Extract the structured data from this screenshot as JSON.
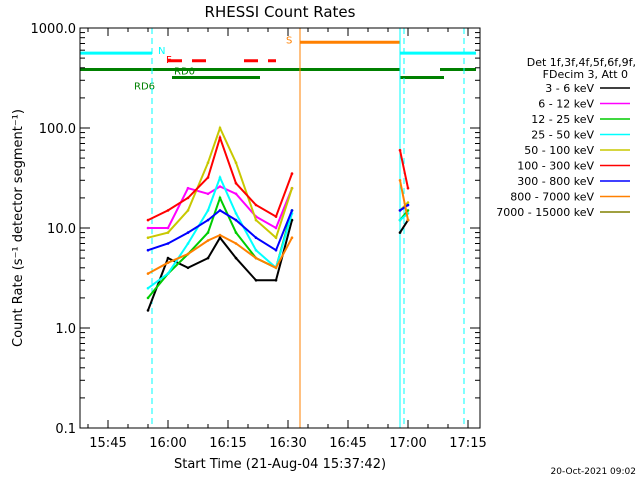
{
  "chart_data": {
    "type": "line",
    "title": "RHESSI Count Rates",
    "xlabel": "Start Time (21-Aug-04 15:37:42)",
    "ylabel": "Count Rate (s⁻¹ detector segment⁻¹)",
    "ylog": true,
    "ylim": [
      0.1,
      1000
    ],
    "xlim_minutes": [
      15.63,
      17.27
    ],
    "x_ticks": [
      "15:45",
      "16:00",
      "16:15",
      "16:30",
      "16:45",
      "17:00",
      "17:15"
    ],
    "y_ticks": [
      "0.1",
      "1.0",
      "10.0",
      "100.0",
      "1000.0"
    ],
    "legend": {
      "header": [
        "Det 1f,3f,4f,5f,6f,9f,",
        "FDecim 3, Att 0"
      ],
      "placement": "right"
    },
    "footer": "20-Oct-2021 09:02",
    "series": [
      {
        "name": "3 - 6 keV",
        "color": "#000000",
        "x": [
          "15:55",
          "16:00",
          "16:05",
          "16:10",
          "16:13",
          "16:17",
          "16:22",
          "16:27",
          "16:31",
          "16:58",
          "17:00"
        ],
        "values": [
          1.5,
          5.0,
          4.0,
          5.0,
          8.0,
          5.0,
          3.0,
          3.0,
          12.0,
          9.0,
          12.0
        ]
      },
      {
        "name": "6 - 12 keV",
        "color": "#ff00ff",
        "x": [
          "15:55",
          "16:00",
          "16:05",
          "16:10",
          "16:13",
          "16:17",
          "16:22",
          "16:27",
          "16:31",
          "16:58",
          "17:00"
        ],
        "values": [
          10,
          10,
          25,
          22,
          26,
          22,
          13,
          10,
          25,
          15,
          17
        ]
      },
      {
        "name": "12 - 25 keV",
        "color": "#00cc00",
        "x": [
          "15:55",
          "16:00",
          "16:05",
          "16:10",
          "16:13",
          "16:17",
          "16:22",
          "16:27",
          "16:31",
          "16:58",
          "17:00"
        ],
        "values": [
          2.0,
          3.5,
          5.5,
          9.0,
          20.0,
          9.0,
          5.0,
          4.0,
          15.0,
          12.0,
          15.0
        ]
      },
      {
        "name": "25 - 50 keV",
        "color": "#00ffff",
        "x": [
          "15:55",
          "16:00",
          "16:05",
          "16:10",
          "16:13",
          "16:17",
          "16:22",
          "16:27",
          "16:31",
          "16:58",
          "17:00"
        ],
        "values": [
          2.5,
          3.5,
          7.0,
          15.0,
          32.0,
          14.0,
          6.0,
          4.0,
          14.0,
          12.0,
          14.0
        ]
      },
      {
        "name": "50 - 100 keV",
        "color": "#c8c800",
        "x": [
          "15:55",
          "16:00",
          "16:05",
          "16:10",
          "16:13",
          "16:17",
          "16:22",
          "16:27",
          "16:31",
          "16:58",
          "17:00"
        ],
        "values": [
          8,
          9,
          15,
          45,
          100,
          45,
          12,
          8,
          25,
          15,
          18
        ]
      },
      {
        "name": "100 - 300 keV",
        "color": "#ff0000",
        "x": [
          "15:55",
          "16:00",
          "16:05",
          "16:10",
          "16:13",
          "16:17",
          "16:22",
          "16:27",
          "16:31",
          "16:58",
          "17:00"
        ],
        "values": [
          12,
          15,
          20,
          32,
          80,
          28,
          17,
          13,
          35,
          60,
          25
        ]
      },
      {
        "name": "300 - 800 keV",
        "color": "#0000ff",
        "x": [
          "15:55",
          "16:00",
          "16:05",
          "16:10",
          "16:13",
          "16:17",
          "16:22",
          "16:27",
          "16:31",
          "16:58",
          "17:00"
        ],
        "values": [
          6,
          7,
          9,
          12,
          15,
          12,
          8,
          6,
          15,
          15,
          17
        ]
      },
      {
        "name": "800 - 7000 keV",
        "color": "#ff8000",
        "x": [
          "15:55",
          "16:00",
          "16:05",
          "16:10",
          "16:13",
          "16:17",
          "16:22",
          "16:27",
          "16:31",
          "16:58",
          "17:00"
        ],
        "values": [
          3.5,
          4.5,
          5.5,
          7.5,
          8.5,
          7.0,
          5.0,
          4.0,
          8.0,
          30.0,
          12.0
        ]
      },
      {
        "name": "7000 - 15000 keV",
        "color": "#808000",
        "x": [],
        "values": []
      }
    ],
    "flags": [
      {
        "label": "N",
        "color": "#00ffff",
        "segments": [
          [
            "15:38",
            "15:56"
          ],
          [
            "16:58",
            "17:17"
          ]
        ]
      },
      {
        "label": "S",
        "color": "#ff8000",
        "segments": [
          [
            "16:33",
            "16:58"
          ]
        ]
      },
      {
        "label": "F",
        "color": "#ff0000",
        "segments": [
          [
            "16:00",
            "16:11"
          ],
          [
            "16:19",
            "16:27"
          ]
        ]
      },
      {
        "label": "RD0",
        "color": "#008000",
        "segments": [
          [
            "15:38",
            "16:58"
          ],
          [
            "17:08",
            "17:17"
          ]
        ]
      },
      {
        "label": "RD6",
        "color": "#008000",
        "segments": [
          [
            "16:01",
            "16:23"
          ],
          [
            "16:58",
            "17:09"
          ]
        ]
      }
    ],
    "vertical_lines": [
      {
        "x": "15:38",
        "color": "#00ffff",
        "style": "solid"
      },
      {
        "x": "15:56",
        "color": "#00ffff",
        "style": "dashed"
      },
      {
        "x": "16:33",
        "color": "#ff8000",
        "style": "solid"
      },
      {
        "x": "16:58",
        "color": "#00ffff",
        "style": "solid"
      },
      {
        "x": "16:59",
        "color": "#00ffff",
        "style": "dashed"
      },
      {
        "x": "17:14",
        "color": "#00ffff",
        "style": "dashed"
      }
    ]
  }
}
